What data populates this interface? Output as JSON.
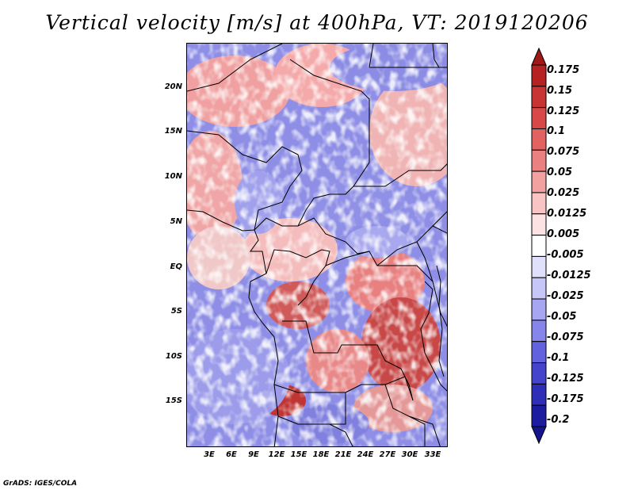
{
  "title": "Vertical velocity [m/s] at 400hPa, VT: 2019120206",
  "footer": "GrADS: IGES/COLA",
  "map": {
    "lat_ticks": [
      "20N",
      "15N",
      "10N",
      "5N",
      "EQ",
      "5S",
      "10S",
      "15S"
    ],
    "lon_ticks": [
      "3E",
      "6E",
      "9E",
      "12E",
      "15E",
      "18E",
      "21E",
      "24E",
      "27E",
      "30E",
      "33E"
    ],
    "land_outline_color": "#000000"
  },
  "colorbar": {
    "labels": [
      "0.175",
      "0.15",
      "0.125",
      "0.1",
      "0.075",
      "0.05",
      "0.025",
      "0.0125",
      "0.005",
      "-0.005",
      "-0.0125",
      "-0.025",
      "-0.05",
      "-0.075",
      "-0.1",
      "-0.125",
      "-0.175",
      "-0.2"
    ],
    "colors": [
      "#a01818",
      "#b62222",
      "#c83434",
      "#d84848",
      "#e26262",
      "#ea8080",
      "#f2a0a0",
      "#f8c4c4",
      "#fce2e2",
      "#ffffff",
      "#e0e0fc",
      "#c6c6f8",
      "#a6a6f2",
      "#8686ea",
      "#6262de",
      "#4444cc",
      "#2e2eb8",
      "#1c1ca0",
      "#14148c"
    ]
  }
}
